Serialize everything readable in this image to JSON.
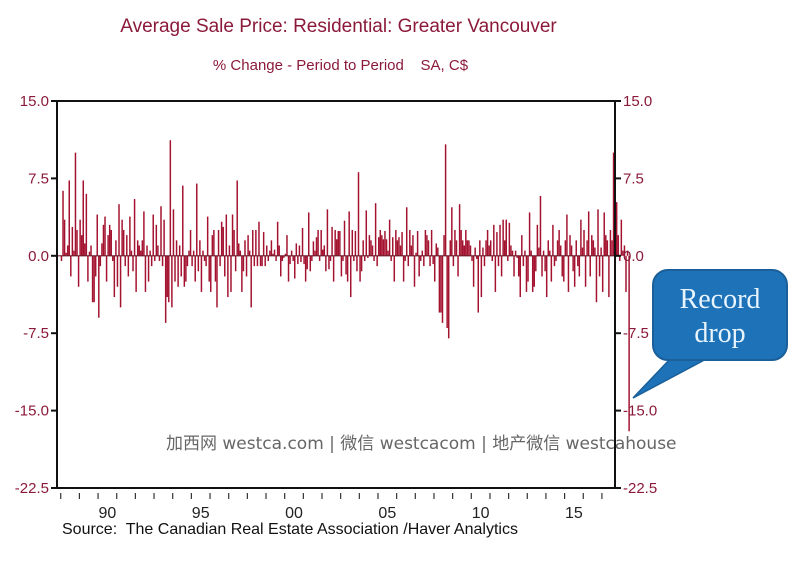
{
  "chart_data": {
    "type": "bar",
    "title": "Average Sale Price: Residential: Greater Vancouver",
    "subtitle": "% Change - Period to Period    SA, C$",
    "xlabel": "",
    "ylabel": "",
    "ylim": [
      -22.5,
      15.0
    ],
    "yticks": [
      "15.0",
      "7.5",
      "0.0",
      "-7.5",
      "-15.0",
      "-22.5"
    ],
    "ytick_values": [
      15.0,
      7.5,
      0.0,
      -7.5,
      -15.0,
      -22.5
    ],
    "xtick_labels": [
      "90",
      "95",
      "00",
      "05",
      "10",
      "15"
    ],
    "xtick_years": [
      1990,
      1995,
      2000,
      2005,
      2010,
      2015
    ],
    "x_start_year": 1988.0,
    "frequency": "monthly",
    "axis_years_range": [
      1987.8,
      2017.7
    ],
    "series": [
      {
        "name": "Average Sale Price % change",
        "color": "#a3122f",
        "values": [
          -0.5,
          6.3,
          3.5,
          0.3,
          1.0,
          7.3,
          -2.0,
          2.8,
          0.5,
          10.0,
          2.5,
          -3.0,
          3.5,
          2.0,
          7.3,
          1.2,
          6.0,
          -2.5,
          0.4,
          1.0,
          -4.5,
          -4.5,
          -2.0,
          4.0,
          -6.0,
          -1.0,
          1.2,
          3.0,
          3.8,
          -2.5,
          2.0,
          3.0,
          2.5,
          -0.5,
          -4.0,
          1.5,
          -3.0,
          5.0,
          -5.0,
          3.5,
          2.5,
          -1.0,
          2.0,
          -2.0,
          3.8,
          0.5,
          -1.5,
          5.5,
          -3.5,
          1.5,
          1.0,
          0.5,
          1.5,
          4.3,
          -3.5,
          1.0,
          -2.5,
          0.5,
          -1.0,
          4.0,
          -0.5,
          3.0,
          1.0,
          -0.5,
          4.8,
          -1.0,
          3.5,
          -6.5,
          -4.0,
          -4.5,
          11.2,
          -5.0,
          4.5,
          -2.5,
          1.5,
          -3.0,
          1.0,
          -2.0,
          6.8,
          -3.0,
          -2.5,
          -1.0,
          0.5,
          2.5,
          -1.0,
          0.5,
          -2.5,
          7.0,
          -1.5,
          1.5,
          -3.5,
          0.5,
          -0.5,
          -1.0,
          3.8,
          -2.5,
          -3.5,
          2.0,
          2.5,
          -2.5,
          -5.0,
          2.5,
          -1.0,
          3.3,
          2.8,
          -2.0,
          4.0,
          -4.0,
          1.0,
          -3.5,
          4.0,
          2.5,
          -1.5,
          7.3,
          1.2,
          0.5,
          -3.5,
          -1.5,
          1.5,
          -2.0,
          2.0,
          0.5,
          -5.0,
          2.5,
          -1.0,
          2.5,
          -1.0,
          3.3,
          -1.0,
          -1.0,
          2.3,
          -1.0,
          1.0,
          -0.5,
          0.5,
          1.5,
          0.2,
          0.6,
          -0.5,
          3.3,
          1.0,
          -2.0,
          -0.5,
          -0.2,
          0.2,
          2.0,
          -2.5,
          -0.8,
          0.5,
          -0.5,
          -2.2,
          1.2,
          -0.8,
          1.0,
          -0.6,
          2.7,
          -0.8,
          -2.5,
          -1.3,
          4.2,
          -1.5,
          -0.5,
          1.4,
          0.5,
          1.8,
          2.5,
          -0.5,
          2.5,
          0.6,
          1.0,
          -1.5,
          4.5,
          -1.3,
          -0.5,
          2.8,
          -2.5,
          2.5,
          1.6,
          2.4,
          2.4,
          -2.0,
          -0.5,
          3.4,
          -1.8,
          -2.5,
          4.3,
          -4.0,
          2.5,
          -0.5,
          2.4,
          -1.5,
          8.1,
          -2.5,
          -1.5,
          1.5,
          -0.5,
          4.4,
          -0.2,
          2.0,
          1.5,
          1.0,
          -0.5,
          5.1,
          -1.0,
          1.8,
          2.5,
          2.0,
          1.6,
          2.4,
          1.6,
          0.5,
          3.5,
          -0.5,
          1.8,
          -2.5,
          2.5,
          1.5,
          1.8,
          1.0,
          2.3,
          -2.5,
          -0.5,
          4.7,
          -1.0,
          2.5,
          1.0,
          2.0,
          -3.0,
          0.3,
          2.4,
          -2.0,
          -0.5,
          0.5,
          -1.0,
          2.5,
          2.0,
          1.5,
          -1.0,
          2.5,
          -0.8,
          -2.5,
          1.2,
          0.8,
          -5.5,
          -5.5,
          -6.5,
          2.0,
          10.8,
          -7.0,
          -8.0,
          1.5,
          4.7,
          -1.0,
          2.5,
          1.5,
          -2.0,
          5.0,
          2.5,
          1.5,
          1.0,
          2.5,
          1.5,
          1.5,
          1.0,
          -0.5,
          -3.0,
          0.8,
          -0.3,
          -5.5,
          1.5,
          -4.0,
          0.8,
          -1.0,
          1.5,
          2.5,
          1.0,
          1.5,
          -0.5,
          3.0,
          -3.5,
          2.3,
          -1.0,
          3.0,
          -2.0,
          3.5,
          1.5,
          3.5,
          -0.5,
          3.2,
          1.0,
          0.5,
          -2.0,
          0.5,
          -0.2,
          -2.0,
          -4.0,
          2.0,
          -1.0,
          0.5,
          -3.5,
          -2.5,
          4.2,
          0.5,
          -3.5,
          -3.0,
          -1.5,
          3.0,
          0.8,
          5.8,
          -2.0,
          0.5,
          -1.5,
          -4.0,
          1.5,
          0.5,
          -2.5,
          3.0,
          -1.0,
          -0.5,
          1.5,
          2.5,
          1.0,
          -2.0,
          -2.5,
          1.5,
          4.0,
          -3.5,
          2.0,
          1.0,
          -1.5,
          -3.0,
          1.5,
          -1.0,
          -2.0,
          3.5,
          0.8,
          2.5,
          -3.0,
          1.5,
          4.3,
          -2.0,
          2.0,
          1.5,
          0.8,
          -4.5,
          4.5,
          -2.0,
          0.8,
          -3.5,
          4.2,
          2.0,
          1.5,
          -4.0,
          2.5,
          1.5,
          10.0,
          0.5,
          5.2,
          2.0,
          -0.5,
          3.5,
          0.5,
          1.0,
          -3.5,
          0.5,
          -17.0
        ]
      }
    ]
  },
  "annotation": {
    "text_line1": "Record",
    "text_line2": "drop"
  },
  "source": "Source:  The Canadian Real Estate Association /Haver Analytics",
  "watermark": "加西网 westca.com | 微信 westcacom | 地产微信 westcahouse",
  "colors": {
    "bars": "#a3122f",
    "title": "#8b1a3a",
    "callout": "#1d72b8",
    "callout_text": "#e8f5ff"
  }
}
